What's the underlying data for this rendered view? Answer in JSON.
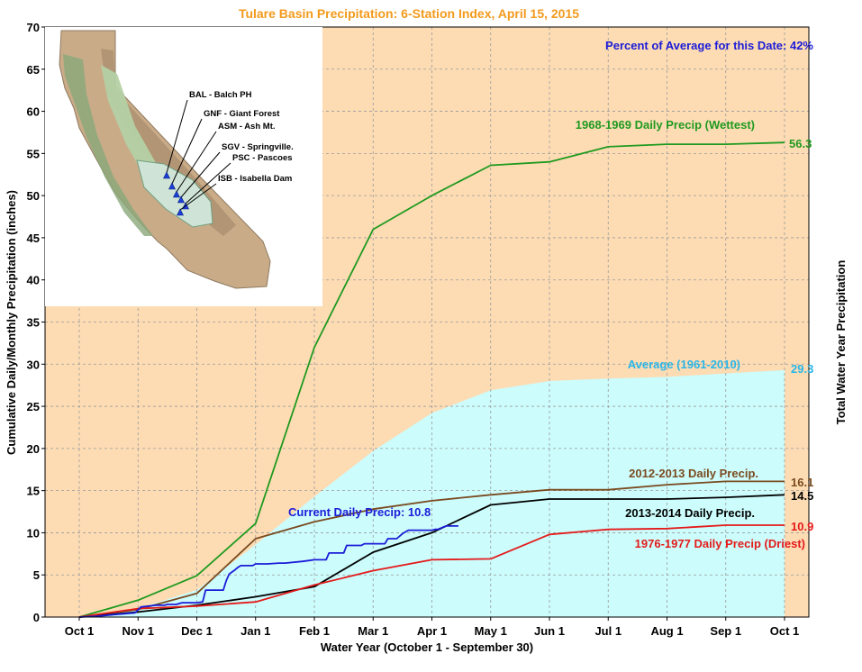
{
  "chart_data": {
    "type": "line",
    "title": "Tulare Basin Precipitation: 6-Station Index, April 15, 2015",
    "annotation": "Percent of Average for this Date: 42%",
    "xlabel": "Water Year (October 1 - September 30)",
    "ylabel": "Cumulative Daily/Monthly Precipitation (inches)",
    "ylabel_right": "Total Water Year Precipitation",
    "ylim": [
      0,
      70
    ],
    "yticks": [
      0,
      5,
      10,
      15,
      20,
      25,
      30,
      35,
      40,
      45,
      50,
      55,
      60,
      65,
      70
    ],
    "xlim": [
      0,
      12
    ],
    "categories": [
      "Oct 1",
      "Nov 1",
      "Dec 1",
      "Jan 1",
      "Feb 1",
      "Mar 1",
      "Apr 1",
      "May 1",
      "Jun 1",
      "Jul 1",
      "Aug 1",
      "Sep 1",
      "Oct 1"
    ],
    "grid": true,
    "colors": {
      "plot_background": "#fddcb4",
      "average_fill": "#ccfcfc",
      "wettest": "#1f9a1f",
      "average": "#29b6e8",
      "y2012": "#7a4a1f",
      "y2013": "#000000",
      "driest": "#e41a1a",
      "current": "#1c1cd8",
      "title": "#f39a1c"
    },
    "series": [
      {
        "key": "wettest",
        "name": "1968-1969 Daily Precip (Wettest)",
        "end_label": "56.3",
        "style": "line",
        "x": [
          0,
          1,
          2,
          3,
          4,
          5,
          6,
          7,
          8,
          9,
          10,
          11,
          12
        ],
        "y": [
          0,
          2.0,
          4.9,
          11.1,
          32.0,
          46.0,
          50.0,
          53.6,
          54.0,
          55.8,
          56.1,
          56.1,
          56.3
        ]
      },
      {
        "key": "average",
        "name": "Average (1961-2010)",
        "end_label": "29.3",
        "style": "area",
        "x": [
          0,
          1,
          2,
          3,
          4,
          5,
          6,
          7,
          8,
          9,
          10,
          11,
          12
        ],
        "y": [
          0,
          1.0,
          3.2,
          8.6,
          14.3,
          19.7,
          24.2,
          26.9,
          28.0,
          28.3,
          28.5,
          28.9,
          29.3
        ]
      },
      {
        "key": "y2012",
        "name": "2012-2013 Daily Precip.",
        "end_label": "16.1",
        "style": "line",
        "x": [
          0,
          1,
          2,
          3,
          4,
          5,
          6,
          7,
          8,
          9,
          10,
          11,
          12
        ],
        "y": [
          0,
          0.9,
          2.8,
          9.3,
          11.3,
          12.8,
          13.8,
          14.5,
          15.1,
          15.1,
          15.7,
          16.1,
          16.1
        ]
      },
      {
        "key": "y2013",
        "name": "2013-2014 Daily Precip.",
        "end_label": "14.5",
        "style": "line",
        "x": [
          0,
          1,
          2,
          3,
          4,
          5,
          6,
          7,
          8,
          9,
          10,
          11,
          12
        ],
        "y": [
          0,
          0.6,
          1.4,
          2.4,
          3.6,
          7.7,
          10.0,
          13.3,
          14.0,
          14.0,
          14.0,
          14.2,
          14.5
        ]
      },
      {
        "key": "driest",
        "name": "1976-1977 Daily Precip (Driest)",
        "end_label": "10.9",
        "style": "line",
        "x": [
          0,
          1,
          2,
          3,
          4,
          5,
          6,
          7,
          8,
          9,
          10,
          11,
          12
        ],
        "y": [
          0,
          1.0,
          1.3,
          1.8,
          3.8,
          5.5,
          6.8,
          6.9,
          9.8,
          10.4,
          10.5,
          10.9,
          10.9
        ]
      },
      {
        "key": "current",
        "name": "Current Daily Precip: 10.8",
        "style": "step",
        "x": [
          0,
          0.3,
          0.6,
          0.95,
          1.05,
          1.3,
          1.45,
          1.5,
          1.65,
          1.7,
          1.75,
          2.0,
          2.1,
          2.15,
          2.45,
          2.5,
          2.55,
          2.65,
          2.7,
          2.75,
          2.95,
          3.0,
          3.2,
          3.4,
          3.5,
          3.8,
          3.9,
          4.0,
          4.2,
          4.25,
          4.5,
          4.55,
          4.8,
          4.85,
          5.2,
          5.25,
          5.4,
          5.5,
          5.55,
          5.6,
          5.8,
          5.9,
          6.0,
          6.05,
          6.1,
          6.2,
          6.25,
          6.35,
          6.4,
          6.45
        ],
        "y": [
          0,
          0.1,
          0.3,
          0.5,
          1.2,
          1.4,
          1.4,
          1.5,
          1.5,
          1.6,
          1.7,
          1.7,
          1.8,
          3.2,
          3.2,
          4.3,
          5.1,
          5.6,
          5.9,
          6.1,
          6.1,
          6.3,
          6.3,
          6.4,
          6.4,
          6.6,
          6.7,
          6.8,
          6.8,
          7.6,
          7.6,
          8.5,
          8.5,
          8.7,
          8.7,
          9.3,
          9.3,
          9.9,
          10.1,
          10.3,
          10.3,
          10.3,
          10.3,
          10.4,
          10.4,
          10.7,
          10.8,
          10.8,
          10.8,
          10.8
        ]
      }
    ]
  },
  "map": {
    "stations": [
      {
        "label": "BAL - Balch PH"
      },
      {
        "label": "GNF - Giant Forest"
      },
      {
        "label": "ASM - Ash Mt."
      },
      {
        "label": "SGV - Springville."
      },
      {
        "label": "PSC - Pascoes"
      },
      {
        "label": "ISB - Isabella Dam"
      }
    ]
  }
}
